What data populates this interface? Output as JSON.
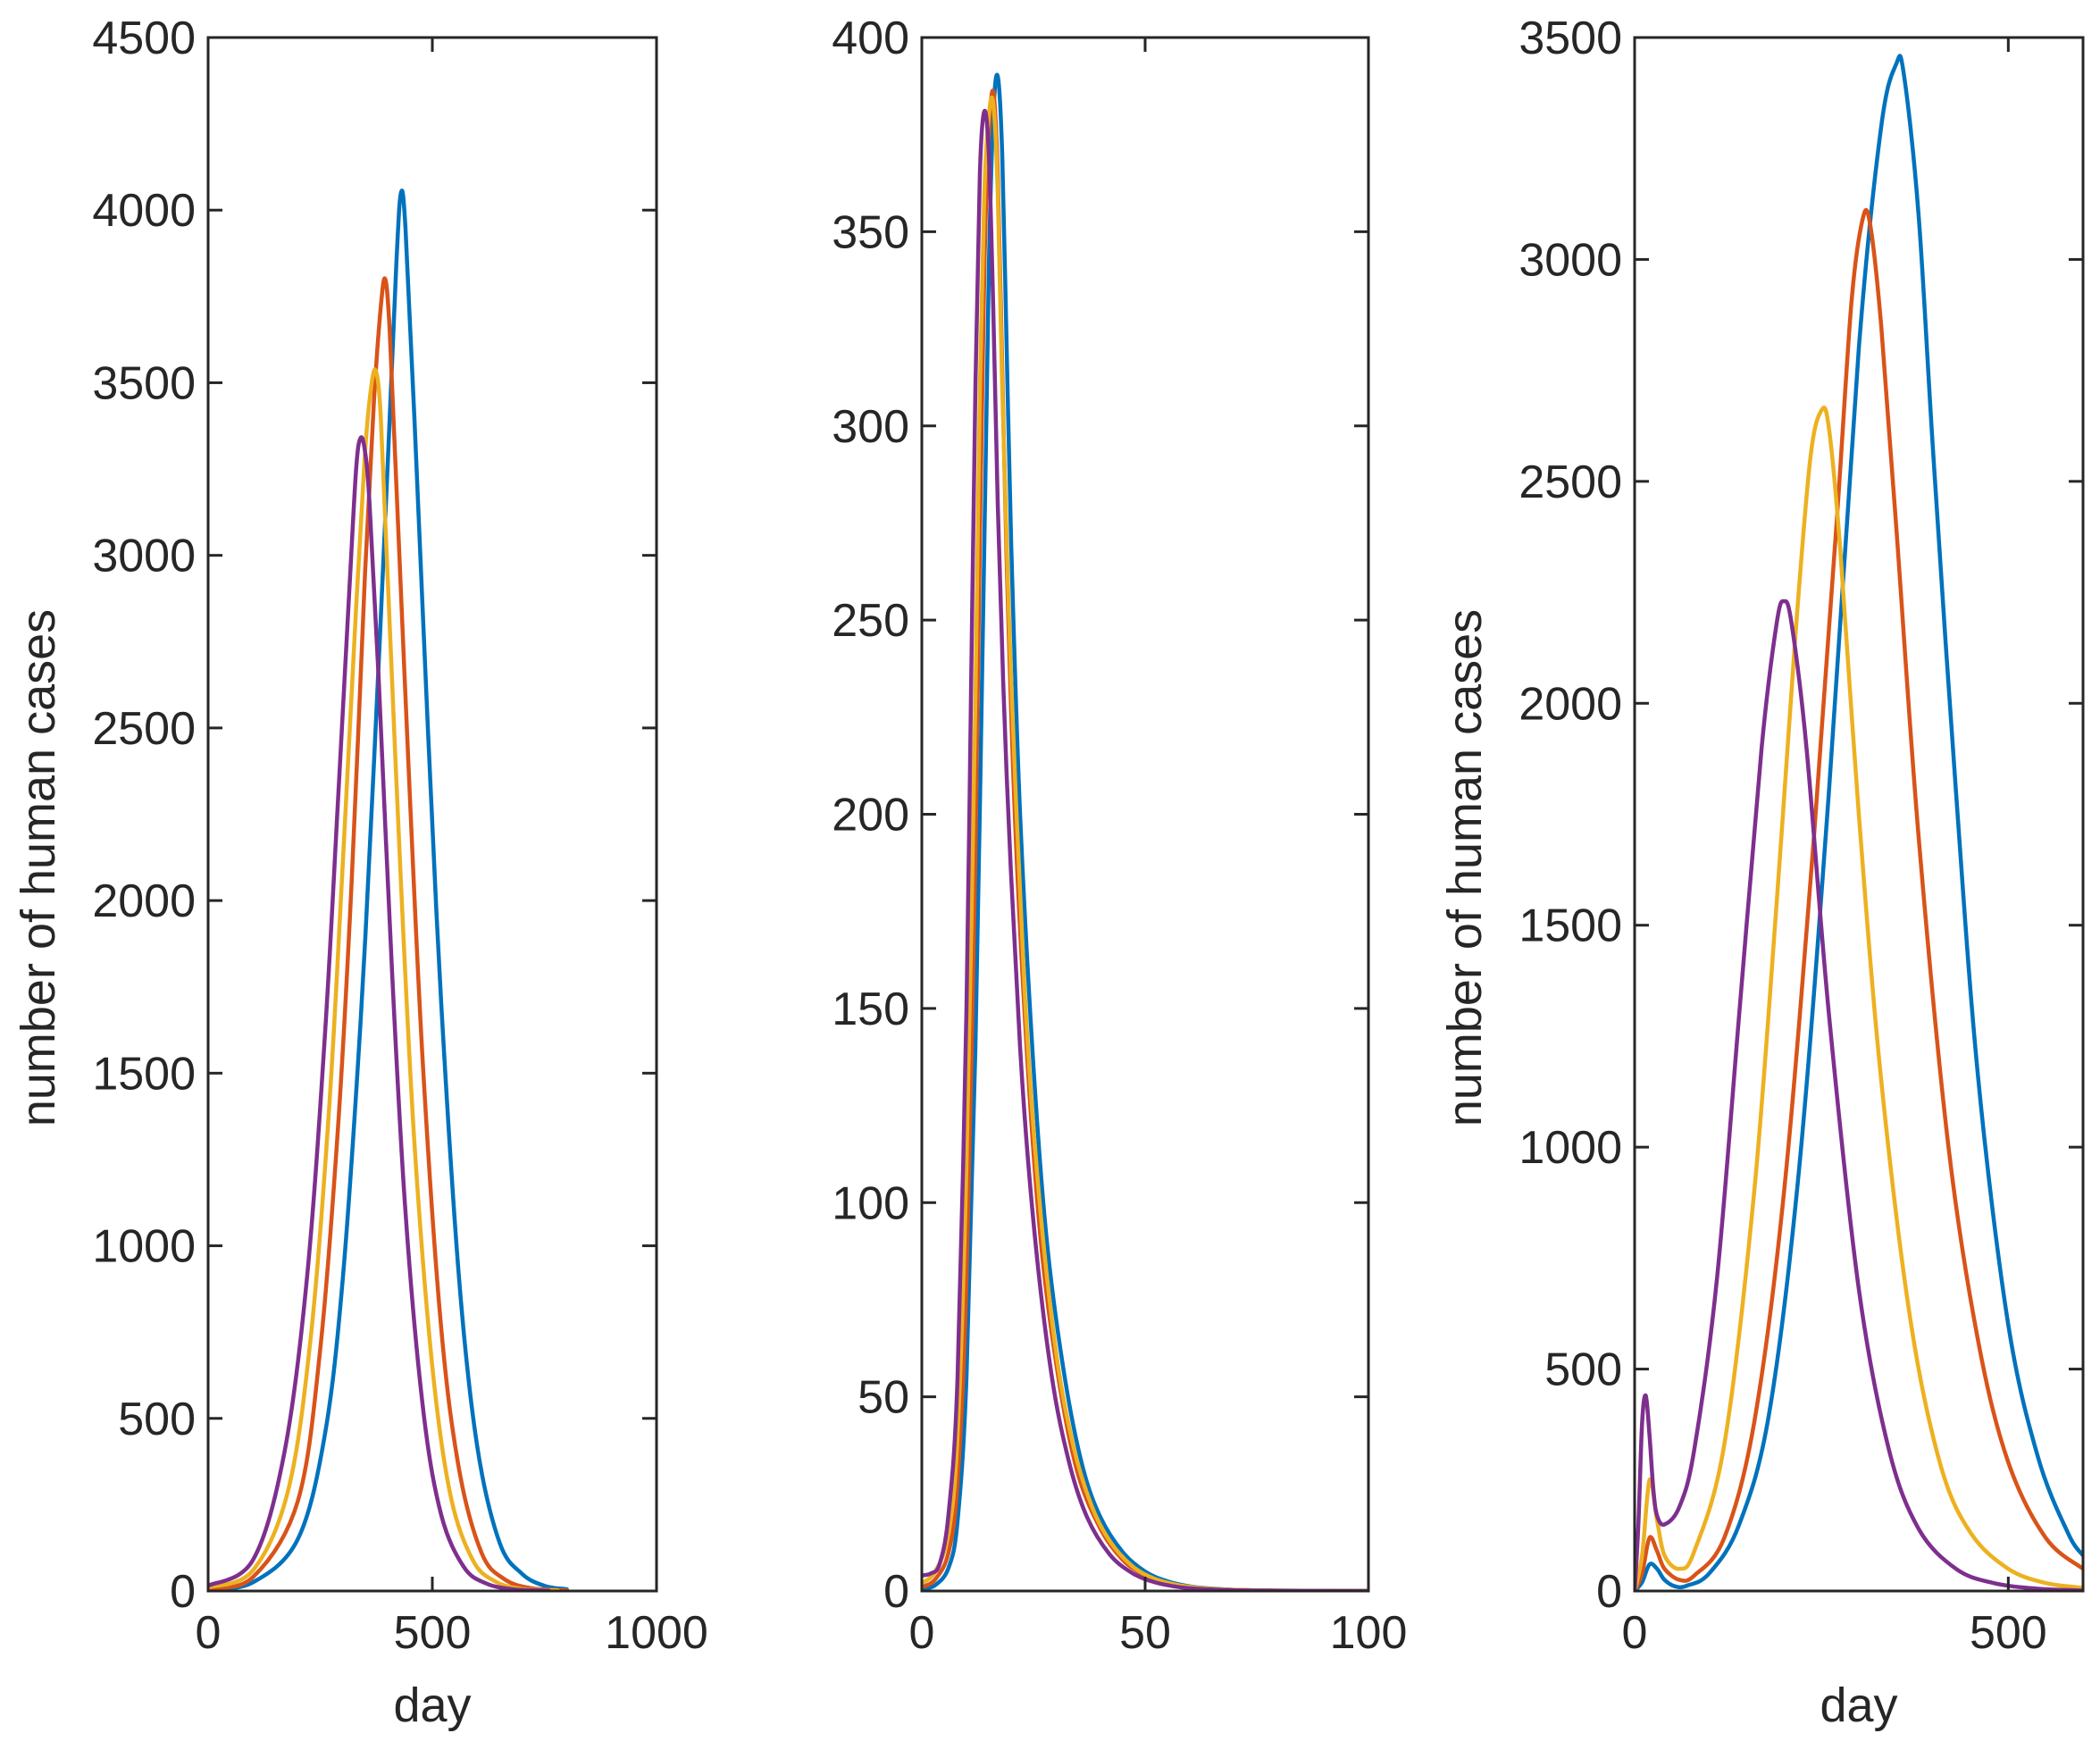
{
  "chart_data": [
    {
      "type": "line",
      "title": "",
      "xlabel": "day",
      "ylabel": "number of human cases",
      "xlim": [
        0,
        1000
      ],
      "ylim": [
        0,
        4500
      ],
      "xticks": [
        "0",
        "500",
        "1000"
      ],
      "yticks": [
        "0",
        "500",
        "1000",
        "1500",
        "2000",
        "2500",
        "3000",
        "3500",
        "4000",
        "4500"
      ],
      "grid": false,
      "series": [
        {
          "name": "blue",
          "color": "#0072BD",
          "x": [
            0,
            100,
            200,
            260,
            300,
            340,
            370,
            400,
            420,
            430,
            440,
            460,
            490,
            520,
            560,
            600,
            650,
            700,
            750,
            800
          ],
          "values": [
            5,
            25,
            150,
            450,
            900,
            1650,
            2400,
            3250,
            3850,
            4050,
            3950,
            3400,
            2500,
            1700,
            900,
            420,
            140,
            50,
            15,
            5
          ]
        },
        {
          "name": "orange",
          "color": "#D95319",
          "x": [
            0,
            100,
            200,
            250,
            290,
            320,
            350,
            370,
            385,
            395,
            405,
            420,
            450,
            480,
            520,
            560,
            610,
            660,
            720,
            800
          ],
          "values": [
            8,
            40,
            260,
            700,
            1350,
            2050,
            2950,
            3450,
            3720,
            3800,
            3650,
            3200,
            2300,
            1500,
            760,
            350,
            110,
            35,
            8,
            2
          ]
        },
        {
          "name": "yellow",
          "color": "#EDB120",
          "x": [
            0,
            100,
            180,
            230,
            270,
            300,
            330,
            350,
            365,
            375,
            385,
            400,
            430,
            460,
            500,
            540,
            590,
            640,
            700,
            780
          ],
          "values": [
            10,
            60,
            300,
            750,
            1400,
            2100,
            2850,
            3300,
            3500,
            3530,
            3400,
            2950,
            2050,
            1300,
            650,
            280,
            90,
            28,
            6,
            2
          ]
        },
        {
          "name": "purple",
          "color": "#7E2F8E",
          "x": [
            0,
            100,
            170,
            220,
            260,
            290,
            315,
            330,
            340,
            350,
            360,
            380,
            410,
            440,
            480,
            520,
            570,
            620,
            680,
            760
          ],
          "values": [
            15,
            90,
            400,
            900,
            1600,
            2300,
            2900,
            3250,
            3340,
            3300,
            3150,
            2650,
            1800,
            1100,
            520,
            220,
            70,
            22,
            5,
            1
          ]
        }
      ]
    },
    {
      "type": "line",
      "title": "",
      "xlabel": "",
      "ylabel": "",
      "xlim": [
        0,
        100
      ],
      "ylim": [
        0,
        400
      ],
      "xticks": [
        "0",
        "50",
        "100"
      ],
      "yticks": [
        "0",
        "50",
        "100",
        "150",
        "200",
        "250",
        "300",
        "350",
        "400"
      ],
      "grid": false,
      "series": [
        {
          "name": "blue",
          "color": "#0072BD",
          "x": [
            0,
            3,
            6,
            8,
            10,
            12,
            14,
            15,
            16,
            17,
            18,
            19,
            20,
            22,
            25,
            28,
            32,
            36,
            40,
            45,
            50,
            55,
            60,
            65,
            70,
            80,
            90,
            100
          ],
          "values": [
            0.5,
            1.5,
            6,
            18,
            55,
            140,
            270,
            340,
            380,
            390,
            370,
            320,
            270,
            200,
            135,
            90,
            55,
            32,
            19,
            10,
            5,
            2.5,
            1.2,
            0.6,
            0.3,
            0.1,
            0.05,
            0.02
          ]
        },
        {
          "name": "orange",
          "color": "#D95319",
          "x": [
            0,
            3,
            6,
            8,
            10,
            12,
            13,
            14,
            15,
            16,
            17,
            18,
            19,
            21,
            24,
            27,
            31,
            35,
            40,
            45,
            50,
            55,
            60,
            65,
            70,
            80,
            90,
            100
          ],
          "values": [
            1,
            3,
            10,
            28,
            80,
            190,
            270,
            340,
            375,
            386,
            365,
            315,
            265,
            195,
            130,
            86,
            52,
            30,
            16,
            8,
            4,
            2,
            1,
            0.5,
            0.25,
            0.08,
            0.03,
            0.01
          ]
        },
        {
          "name": "yellow",
          "color": "#EDB120",
          "x": [
            0,
            3,
            6,
            8,
            10,
            12,
            13,
            14,
            15,
            16,
            17,
            18,
            20,
            23,
            26,
            30,
            34,
            38,
            42,
            47,
            52,
            57,
            62,
            67,
            75,
            85,
            100
          ],
          "values": [
            2,
            5,
            15,
            40,
            110,
            230,
            310,
            360,
            380,
            383,
            360,
            310,
            235,
            155,
            105,
            62,
            37,
            22,
            13,
            6.5,
            3.2,
            1.6,
            0.8,
            0.4,
            0.15,
            0.05,
            0.01
          ]
        },
        {
          "name": "purple",
          "color": "#7E2F8E",
          "x": [
            0,
            2,
            4,
            6,
            8,
            10,
            11,
            12,
            13,
            14,
            15,
            16,
            17,
            19,
            22,
            25,
            29,
            33,
            37,
            42,
            47,
            52,
            57,
            62,
            70,
            80,
            100
          ],
          "values": [
            4,
            4.5,
            7,
            20,
            55,
            150,
            230,
            310,
            365,
            381,
            370,
            330,
            280,
            210,
            140,
            95,
            56,
            33,
            19,
            9.5,
            4.7,
            2.3,
            1.1,
            0.55,
            0.2,
            0.06,
            0.01
          ]
        }
      ]
    },
    {
      "type": "line",
      "title": "",
      "xlabel": "day",
      "ylabel": "number of human cases",
      "xlim": [
        0,
        600
      ],
      "ylim": [
        0,
        3500
      ],
      "xticks": [
        "0",
        "500"
      ],
      "yticks": [
        "0",
        "500",
        "1000",
        "1500",
        "2000",
        "2500",
        "3000",
        "3500"
      ],
      "grid": false,
      "series": [
        {
          "name": "blue",
          "color": "#0072BD",
          "x": [
            0,
            10,
            20,
            30,
            40,
            55,
            70,
            100,
            140,
            180,
            220,
            260,
            300,
            330,
            350,
            360,
            380,
            400,
            430,
            460,
            500,
            540,
            580,
            600
          ],
          "values": [
            0,
            20,
            60,
            50,
            25,
            10,
            12,
            40,
            150,
            400,
            950,
            1800,
            2800,
            3300,
            3440,
            3420,
            3100,
            2550,
            1800,
            1150,
            600,
            300,
            130,
            80
          ]
        },
        {
          "name": "orange",
          "color": "#D95319",
          "x": [
            0,
            10,
            20,
            30,
            40,
            60,
            80,
            120,
            160,
            200,
            240,
            270,
            290,
            305,
            315,
            330,
            350,
            380,
            420,
            460,
            500,
            550,
            600
          ],
          "values": [
            0,
            40,
            120,
            90,
            50,
            25,
            35,
            120,
            380,
            900,
            1700,
            2400,
            2900,
            3090,
            3080,
            2850,
            2400,
            1700,
            1000,
            560,
            290,
            120,
            50
          ]
        },
        {
          "name": "yellow",
          "color": "#EDB120",
          "x": [
            0,
            10,
            20,
            30,
            40,
            60,
            80,
            120,
            160,
            190,
            215,
            235,
            250,
            260,
            275,
            300,
            330,
            370,
            410,
            450,
            500,
            550,
            600
          ],
          "values": [
            0,
            80,
            250,
            160,
            80,
            50,
            90,
            330,
            900,
            1550,
            2150,
            2550,
            2660,
            2620,
            2350,
            1750,
            1150,
            600,
            280,
            130,
            50,
            18,
            7
          ]
        },
        {
          "name": "purple",
          "color": "#7E2F8E",
          "x": [
            0,
            5,
            10,
            15,
            20,
            25,
            30,
            40,
            60,
            80,
            110,
            140,
            170,
            190,
            200,
            210,
            230,
            260,
            300,
            340,
            380,
            430,
            480,
            540,
            600
          ],
          "values": [
            0,
            150,
            380,
            440,
            350,
            230,
            170,
            150,
            190,
            320,
            700,
            1300,
            1900,
            2180,
            2230,
            2180,
            1900,
            1300,
            680,
            320,
            140,
            50,
            18,
            5,
            1
          ]
        }
      ]
    }
  ]
}
